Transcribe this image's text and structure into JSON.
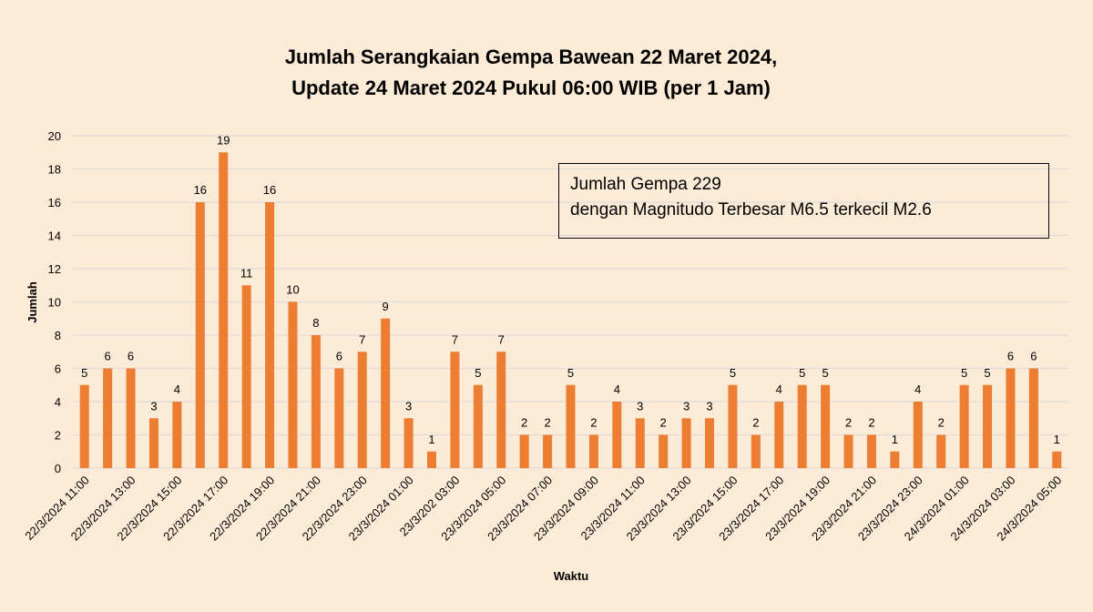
{
  "chart_data": {
    "type": "bar",
    "title": [
      "Jumlah Serangkaian Gempa Bawean 22 Maret 2024,",
      "Update 24 Maret 2024 Pukul 06:00 WIB (per 1 Jam)"
    ],
    "xlabel": "Waktu",
    "ylabel": "Jumlah",
    "ylim": [
      0,
      20
    ],
    "yticks": [
      0,
      2,
      4,
      6,
      8,
      10,
      12,
      14,
      16,
      18,
      20
    ],
    "grid": true,
    "bar_color": "#ed7d31",
    "values": [
      5,
      6,
      6,
      3,
      4,
      16,
      19,
      11,
      16,
      10,
      8,
      6,
      7,
      9,
      3,
      1,
      7,
      5,
      7,
      2,
      2,
      5,
      2,
      4,
      3,
      2,
      3,
      3,
      5,
      2,
      4,
      5,
      5,
      2,
      2,
      1,
      4,
      2,
      5,
      5,
      6,
      6,
      1
    ],
    "x_tick_labels": [
      "22/3/2024 11:00",
      "22/3/2024 13:00",
      "22/3/2024 15:00",
      "22/3/2024 17:00",
      "22/3/2024 19:00",
      "22/3/2024 21:00",
      "22/3/2024 23:00",
      "23/3/2024 01:00",
      "23/3/202 03:00",
      "23/3/2024 05:00",
      "23/3/2024 07:00",
      "23/3/2024 09:00",
      "23/3/2024 11:00",
      "23/3/2024 13:00",
      "23/3/2024 15:00",
      "23/3/2024 17:00",
      "23/3/2024 19:00",
      "23/3/2024 21:00",
      "23/3/2024 23:00",
      "24/3/2024 01:00",
      "24/3/2024 03:00",
      "24/3/2024 05:00"
    ],
    "x_tick_every": 2,
    "annotation": [
      "Jumlah Gempa 229",
      "dengan Magnitudo Terbesar M6.5 terkecil M2.6"
    ]
  }
}
